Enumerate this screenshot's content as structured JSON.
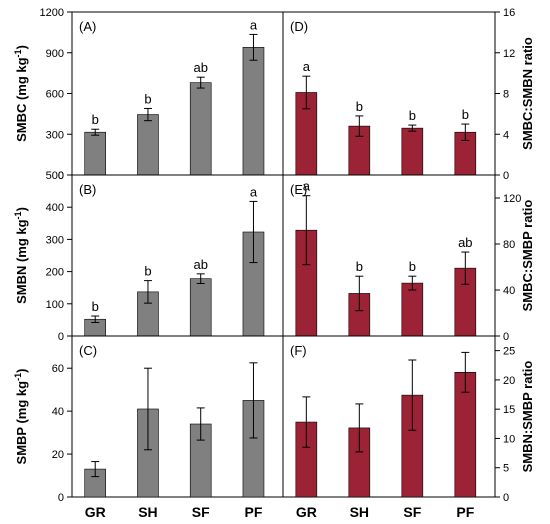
{
  "chart_data": [
    {
      "id": "A",
      "type": "bar",
      "panel_label": "(A)",
      "categories": [
        "GR",
        "SH",
        "SF",
        "PF"
      ],
      "values": [
        315,
        445,
        680,
        940
      ],
      "errors": [
        22,
        45,
        40,
        95
      ],
      "letters": [
        "b",
        "b",
        "ab",
        "a"
      ],
      "ylim": [
        0,
        1200
      ],
      "yticks": [
        0,
        300,
        600,
        900,
        1200
      ],
      "ylabel_main": "SMBC (mg kg",
      "ylabel_sup": "-1",
      "ylabel_end": ")",
      "color": "#808080",
      "axis_side": "left"
    },
    {
      "id": "B",
      "type": "bar",
      "panel_label": "(B)",
      "categories": [
        "GR",
        "SH",
        "SF",
        "PF"
      ],
      "values": [
        52,
        137,
        178,
        323
      ],
      "errors": [
        10,
        35,
        15,
        95
      ],
      "letters": [
        "b",
        "b",
        "ab",
        "a"
      ],
      "ylim": [
        0,
        500
      ],
      "yticks": [
        0,
        100,
        200,
        300,
        400,
        500
      ],
      "ylabel_main": "SMBN (mg kg",
      "ylabel_sup": "-1",
      "ylabel_end": ")",
      "color": "#808080",
      "axis_side": "left"
    },
    {
      "id": "C",
      "type": "bar",
      "panel_label": "(C)",
      "categories": [
        "GR",
        "SH",
        "SF",
        "PF"
      ],
      "values": [
        13,
        41,
        34,
        45
      ],
      "errors": [
        3.5,
        19,
        7.5,
        17.5
      ],
      "letters": [
        "",
        "",
        "",
        ""
      ],
      "ylim": [
        0,
        75
      ],
      "yticks": [
        0,
        20,
        40,
        60
      ],
      "ylabel_main": "SMBP (mg kg",
      "ylabel_sup": "-1",
      "ylabel_end": ")",
      "color": "#808080",
      "axis_side": "left"
    },
    {
      "id": "D",
      "type": "bar",
      "panel_label": "(D)",
      "categories": [
        "GR",
        "SH",
        "SF",
        "PF"
      ],
      "values": [
        8.1,
        4.8,
        4.6,
        4.2
      ],
      "errors": [
        1.6,
        1.0,
        0.3,
        0.8
      ],
      "letters": [
        "a",
        "b",
        "b",
        "b"
      ],
      "ylim": [
        0,
        16
      ],
      "yticks": [
        0,
        4,
        8,
        12,
        16
      ],
      "ylabel_main": "SMBC:SMBN ratio",
      "ylabel_sup": "",
      "ylabel_end": "",
      "color": "#9b2335",
      "axis_side": "right"
    },
    {
      "id": "E",
      "type": "bar",
      "panel_label": "(E)",
      "categories": [
        "GR",
        "SH",
        "SF",
        "PF"
      ],
      "values": [
        92,
        37,
        46,
        59
      ],
      "errors": [
        30,
        15,
        6,
        14
      ],
      "letters": [
        "a",
        "b",
        "b",
        "ab"
      ],
      "ylim": [
        0,
        140
      ],
      "yticks": [
        0,
        40,
        80,
        120
      ],
      "ylabel_main": "SMBC:SMBP ratio",
      "ylabel_sup": "",
      "ylabel_end": "",
      "color": "#9b2335",
      "axis_side": "right"
    },
    {
      "id": "F",
      "type": "bar",
      "panel_label": "(F)",
      "categories": [
        "GR",
        "SH",
        "SF",
        "PF"
      ],
      "values": [
        12.8,
        11.8,
        17.4,
        21.3
      ],
      "errors": [
        4.3,
        4.1,
        6.0,
        3.4
      ],
      "letters": [
        "",
        "",
        "",
        ""
      ],
      "ylim": [
        0,
        27.5
      ],
      "yticks": [
        0,
        5,
        10,
        15,
        20,
        25
      ],
      "ylabel_main": "SMBN:SMBP ratio",
      "ylabel_sup": "",
      "ylabel_end": "",
      "color": "#9b2335",
      "axis_side": "right"
    }
  ]
}
